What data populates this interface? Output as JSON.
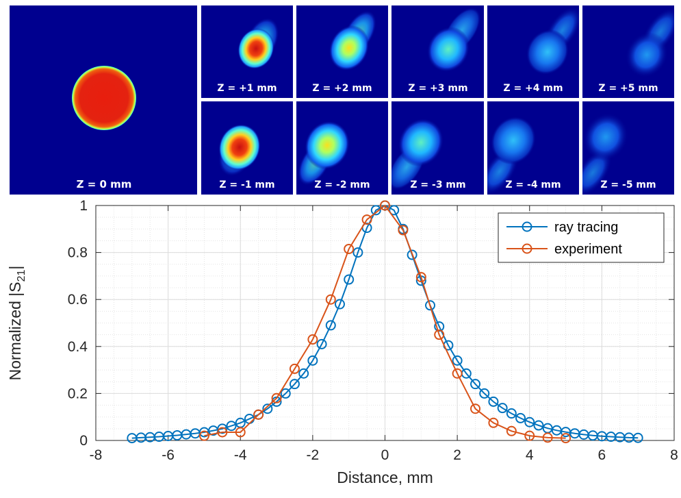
{
  "panels": {
    "main": {
      "label": "Z = 0 mm"
    },
    "top_row": [
      {
        "label": "Z = +1 mm"
      },
      {
        "label": "Z = +2 mm"
      },
      {
        "label": "Z = +3 mm"
      },
      {
        "label": "Z = +4 mm"
      },
      {
        "label": "Z = +5 mm"
      }
    ],
    "bottom_row": [
      {
        "label": "Z = -1 mm"
      },
      {
        "label": "Z = -2 mm"
      },
      {
        "label": "Z = -3 mm"
      },
      {
        "label": "Z = -4 mm"
      },
      {
        "label": "Z = -5 mm"
      }
    ]
  },
  "chart_data": {
    "type": "line",
    "xlabel": "Distance, mm",
    "ylabel_main": "Normalized |S",
    "ylabel_sub": "21",
    "ylabel_end": "|",
    "xlim": [
      -8,
      8
    ],
    "ylim": [
      0,
      1
    ],
    "xticks": [
      -8,
      -6,
      -4,
      -2,
      0,
      2,
      4,
      6,
      8
    ],
    "yticks": [
      0,
      0.2,
      0.4,
      0.6,
      0.8,
      1
    ],
    "xtick_labels": [
      "-8",
      "-6",
      "-4",
      "-2",
      "0",
      "2",
      "4",
      "6",
      "8"
    ],
    "ytick_labels": [
      "0",
      "0.2",
      "0.4",
      "0.6",
      "0.8",
      "1"
    ],
    "grid": true,
    "minor_grid": true,
    "legend_position": "top-right",
    "series": [
      {
        "name": "ray tracing",
        "color": "#0072BD",
        "x": [
          -7,
          -6.75,
          -6.5,
          -6.25,
          -6,
          -5.75,
          -5.5,
          -5.25,
          -5,
          -4.75,
          -4.5,
          -4.25,
          -4,
          -3.75,
          -3.5,
          -3.25,
          -3,
          -2.75,
          -2.5,
          -2.25,
          -2,
          -1.75,
          -1.5,
          -1.25,
          -1,
          -0.75,
          -0.5,
          -0.25,
          0,
          0.25,
          0.5,
          0.75,
          1,
          1.25,
          1.5,
          1.75,
          2,
          2.25,
          2.5,
          2.75,
          3,
          3.25,
          3.5,
          3.75,
          4,
          4.25,
          4.5,
          4.75,
          5,
          5.25,
          5.5,
          5.75,
          6,
          6.25,
          6.5,
          6.75,
          7
        ],
        "y": [
          0.01,
          0.012,
          0.014,
          0.016,
          0.019,
          0.022,
          0.026,
          0.03,
          0.035,
          0.042,
          0.05,
          0.062,
          0.075,
          0.092,
          0.11,
          0.135,
          0.165,
          0.2,
          0.24,
          0.285,
          0.34,
          0.41,
          0.49,
          0.58,
          0.685,
          0.8,
          0.905,
          0.98,
          1.0,
          0.98,
          0.9,
          0.79,
          0.68,
          0.575,
          0.485,
          0.405,
          0.34,
          0.285,
          0.24,
          0.2,
          0.165,
          0.138,
          0.115,
          0.095,
          0.078,
          0.064,
          0.052,
          0.043,
          0.036,
          0.03,
          0.025,
          0.021,
          0.018,
          0.016,
          0.014,
          0.012,
          0.011
        ]
      },
      {
        "name": "experiment",
        "color": "#D95319",
        "x": [
          -5,
          -4.5,
          -4,
          -3.5,
          -3,
          -2.5,
          -2,
          -1.5,
          -1,
          -0.5,
          0,
          0.5,
          1,
          1.5,
          2,
          2.5,
          3,
          3.5,
          4,
          4.5,
          5
        ],
        "y": [
          0.02,
          0.035,
          0.035,
          0.11,
          0.18,
          0.305,
          0.43,
          0.6,
          0.815,
          0.94,
          1.0,
          0.895,
          0.695,
          0.45,
          0.285,
          0.135,
          0.075,
          0.04,
          0.02,
          0.012,
          0.01
        ]
      }
    ]
  }
}
